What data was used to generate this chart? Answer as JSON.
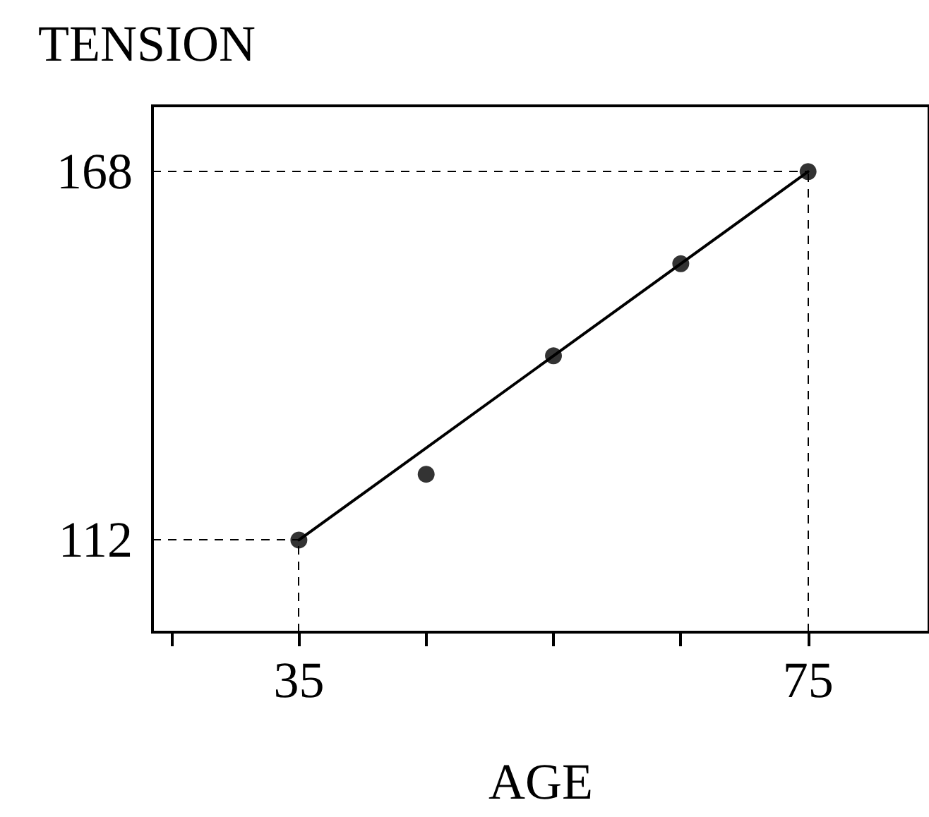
{
  "chart_data": {
    "type": "scatter",
    "title": "TENSION",
    "xlabel": "AGE",
    "xlim": [
      23.5,
      84.5
    ],
    "ylim": [
      98,
      178
    ],
    "xticks": [
      {
        "value": 25,
        "label": null
      },
      35,
      {
        "value": 45,
        "label": null
      },
      {
        "value": 55,
        "label": null
      },
      {
        "value": 65,
        "label": null
      },
      75
    ],
    "yticks": [
      112,
      168
    ],
    "x": [
      35,
      45,
      55,
      65,
      75
    ],
    "series": [
      {
        "color": "#000000",
        "values": [
          112,
          122,
          140,
          154,
          168
        ]
      },
      {
        "type": "line",
        "marker": "none",
        "color": "#000000",
        "x": [
          35,
          75
        ],
        "values": [
          112,
          168
        ]
      }
    ],
    "ref_lines": [
      {
        "axis": "y",
        "value": 112,
        "line_style": "dashed",
        "color": "#000000"
      },
      {
        "axis": "y",
        "value": 168,
        "line_style": "dashed",
        "color": "#000000"
      },
      {
        "axis": "x",
        "value": 35,
        "line_style": "dashed",
        "color": "#000000"
      },
      {
        "axis": "x",
        "value": 75,
        "line_style": "dashed",
        "color": "#000000"
      }
    ],
    "marker": "circle"
  }
}
